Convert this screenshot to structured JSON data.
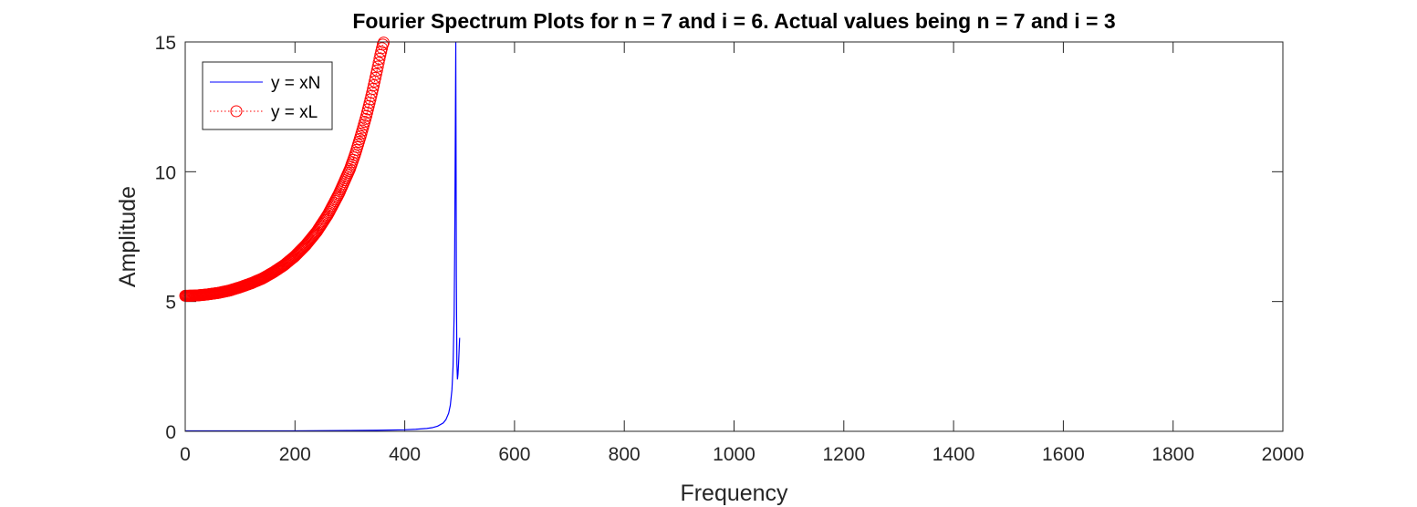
{
  "chart_data": {
    "type": "line",
    "title": "Fourier Spectrum Plots for n = 7 and i = 6. Actual values being n = 7 and i = 3",
    "xlabel": "Frequency",
    "ylabel": "Amplitude",
    "xlim": [
      0,
      2000
    ],
    "ylim": [
      0,
      15
    ],
    "xticks": [
      0,
      200,
      400,
      600,
      800,
      1000,
      1200,
      1400,
      1600,
      1800,
      2000
    ],
    "yticks": [
      0,
      5,
      10,
      15
    ],
    "grid": false,
    "legend_position": "top-left",
    "series": [
      {
        "name": "y = xN",
        "color": "#0000ff",
        "style": "solid",
        "marker": "none",
        "x": [
          0,
          100,
          200,
          300,
          350,
          400,
          420,
          440,
          450,
          460,
          470,
          475,
          480,
          483,
          486,
          488,
          490,
          491,
          492,
          493,
          494,
          495,
          496,
          497,
          498,
          499,
          500
        ],
        "y": [
          0.02,
          0.02,
          0.02,
          0.03,
          0.04,
          0.06,
          0.08,
          0.11,
          0.14,
          0.2,
          0.32,
          0.45,
          0.7,
          1.0,
          1.6,
          2.5,
          4.5,
          7.0,
          11.0,
          15.0,
          6.0,
          2.6,
          2.0,
          2.2,
          2.6,
          3.1,
          3.6
        ]
      },
      {
        "name": "y = xL",
        "color": "#ff0000",
        "style": "dotted",
        "marker": "circle",
        "x": [
          0,
          20,
          40,
          60,
          80,
          100,
          120,
          140,
          160,
          180,
          200,
          220,
          240,
          260,
          280,
          300,
          310,
          320,
          330,
          340,
          350,
          355,
          360,
          362
        ],
        "y": [
          5.22,
          5.23,
          5.27,
          5.33,
          5.42,
          5.55,
          5.7,
          5.88,
          6.12,
          6.4,
          6.75,
          7.18,
          7.7,
          8.35,
          9.15,
          10.1,
          10.7,
          11.4,
          12.15,
          13.0,
          13.95,
          14.45,
          14.9,
          15.0
        ]
      }
    ]
  }
}
